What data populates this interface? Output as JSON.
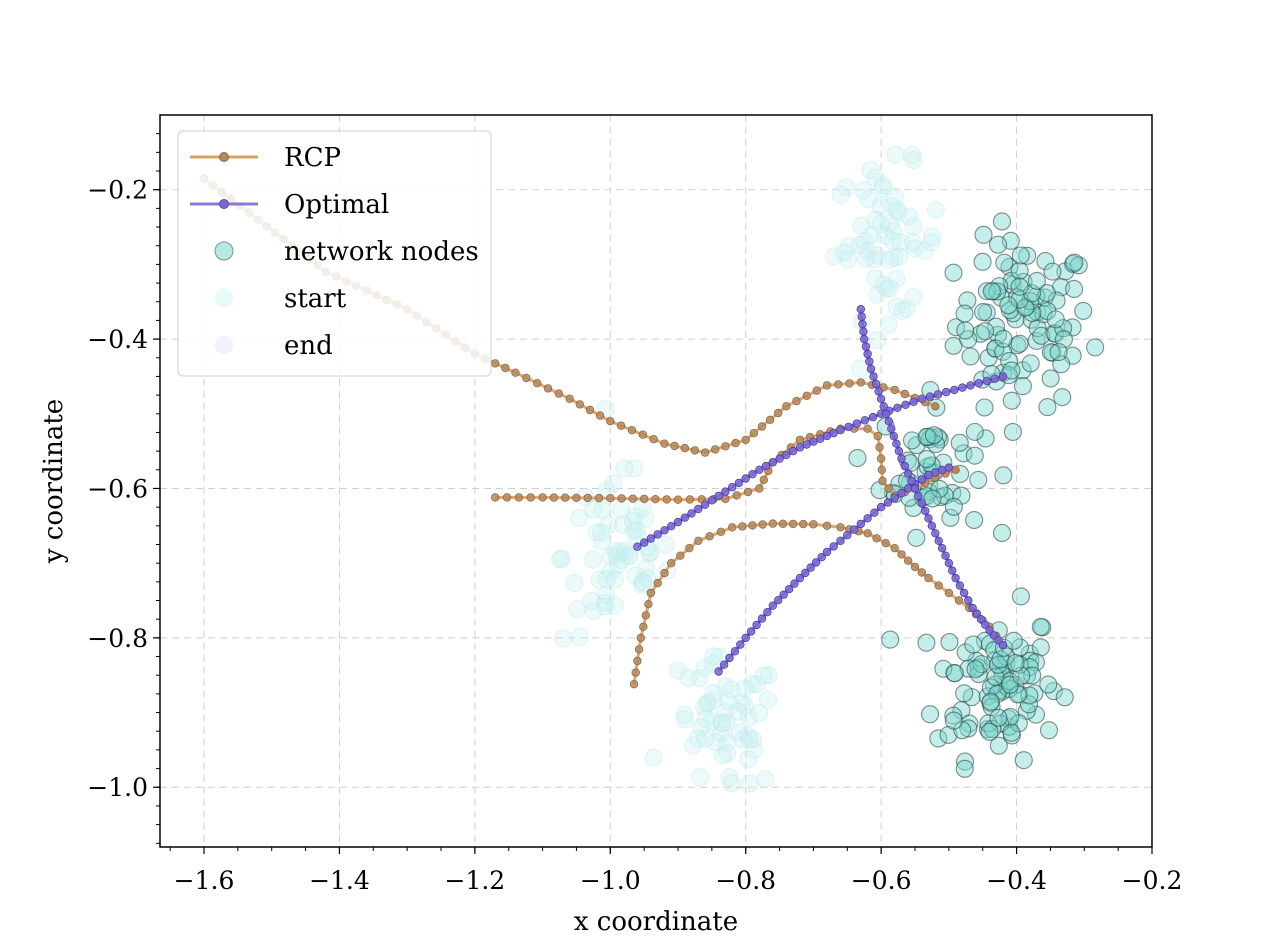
{
  "chart_data": {
    "type": "scatter",
    "title": "",
    "xlabel": "x coordinate",
    "ylabel": "y coordinate",
    "xlim": [
      -1.665,
      -0.2
    ],
    "ylim": [
      -1.08,
      -0.1
    ],
    "x_ticks": [
      -1.6,
      -1.4,
      -1.2,
      -1.0,
      -0.8,
      -0.6,
      -0.4,
      -0.2
    ],
    "x_tick_labels": [
      "−1.6",
      "−1.4",
      "−1.2",
      "−1.0",
      "−0.8",
      "−0.6",
      "−0.4",
      "−0.2"
    ],
    "y_ticks": [
      -0.2,
      -0.4,
      -0.6,
      -0.8,
      -1.0
    ],
    "y_tick_labels": [
      "−0.2",
      "−0.4",
      "−0.6",
      "−0.8",
      "−1.0"
    ],
    "grid": true,
    "legend": {
      "position": "upper-left",
      "entries": [
        {
          "label": "RCP",
          "kind": "line",
          "color": "#d9a066"
        },
        {
          "label": "Optimal",
          "kind": "line",
          "color": "#6a5acd"
        },
        {
          "label": "network nodes",
          "kind": "marker",
          "color": "#7fd6cf"
        },
        {
          "label": "start",
          "kind": "marker",
          "color": "#e8fbfb"
        },
        {
          "label": "end",
          "kind": "marker",
          "color": "#f3f0fb"
        }
      ]
    },
    "colors": {
      "rcp": "#d9a066",
      "rcp_marker": "#b5885a",
      "optimal": "#6a5acd",
      "optimal_marker": "#7b68d6",
      "node_fill": "#7fd6cf",
      "node_edge": "#000000",
      "faded_node": "#c8f0f2"
    },
    "series": [
      {
        "name": "RCP",
        "points": [
          [
            -1.6,
            -0.185
          ],
          [
            -1.52,
            -0.24
          ],
          [
            -1.42,
            -0.31
          ],
          [
            -1.3,
            -0.36
          ],
          [
            -1.2,
            -0.42
          ],
          [
            -1.14,
            -0.445
          ],
          [
            -1.06,
            -0.48
          ],
          [
            -1.0,
            -0.51
          ],
          [
            -0.92,
            -0.54
          ],
          [
            -0.86,
            -0.552
          ],
          [
            -0.8,
            -0.535
          ],
          [
            -0.74,
            -0.49
          ],
          [
            -0.68,
            -0.462
          ],
          [
            -0.63,
            -0.458
          ],
          [
            -0.58,
            -0.468
          ],
          [
            -0.52,
            -0.49
          ]
        ]
      },
      {
        "name": "RCP",
        "points": [
          [
            -1.17,
            -0.612
          ],
          [
            -1.1,
            -0.612
          ],
          [
            -1.0,
            -0.613
          ],
          [
            -0.9,
            -0.615
          ],
          [
            -0.83,
            -0.614
          ],
          [
            -0.78,
            -0.6
          ],
          [
            -0.76,
            -0.565
          ],
          [
            -0.72,
            -0.535
          ],
          [
            -0.66,
            -0.52
          ],
          [
            -0.62,
            -0.52
          ],
          [
            -0.605,
            -0.53
          ],
          [
            -0.6,
            -0.56
          ],
          [
            -0.598,
            -0.59
          ],
          [
            -0.58,
            -0.61
          ],
          [
            -0.55,
            -0.6
          ],
          [
            -0.52,
            -0.585
          ],
          [
            -0.49,
            -0.575
          ]
        ]
      },
      {
        "name": "RCP",
        "points": [
          [
            -0.965,
            -0.862
          ],
          [
            -0.955,
            -0.8
          ],
          [
            -0.94,
            -0.74
          ],
          [
            -0.91,
            -0.7
          ],
          [
            -0.87,
            -0.67
          ],
          [
            -0.82,
            -0.652
          ],
          [
            -0.76,
            -0.647
          ],
          [
            -0.7,
            -0.648
          ],
          [
            -0.66,
            -0.652
          ],
          [
            -0.62,
            -0.66
          ],
          [
            -0.58,
            -0.68
          ],
          [
            -0.55,
            -0.705
          ],
          [
            -0.53,
            -0.72
          ],
          [
            -0.5,
            -0.74
          ],
          [
            -0.47,
            -0.76
          ],
          [
            -0.44,
            -0.785
          ],
          [
            -0.42,
            -0.81
          ]
        ]
      },
      {
        "name": "Optimal",
        "points": [
          [
            -0.96,
            -0.678
          ],
          [
            -0.9,
            -0.645
          ],
          [
            -0.84,
            -0.61
          ],
          [
            -0.78,
            -0.575
          ],
          [
            -0.72,
            -0.545
          ],
          [
            -0.66,
            -0.522
          ],
          [
            -0.6,
            -0.5
          ],
          [
            -0.54,
            -0.48
          ],
          [
            -0.48,
            -0.465
          ],
          [
            -0.42,
            -0.45
          ]
        ]
      },
      {
        "name": "Optimal",
        "points": [
          [
            -0.84,
            -0.845
          ],
          [
            -0.8,
            -0.8
          ],
          [
            -0.76,
            -0.757
          ],
          [
            -0.72,
            -0.72
          ],
          [
            -0.68,
            -0.685
          ],
          [
            -0.64,
            -0.655
          ],
          [
            -0.6,
            -0.625
          ],
          [
            -0.56,
            -0.6
          ],
          [
            -0.53,
            -0.582
          ],
          [
            -0.5,
            -0.572
          ]
        ]
      },
      {
        "name": "Optimal",
        "points": [
          [
            -0.63,
            -0.36
          ],
          [
            -0.625,
            -0.4
          ],
          [
            -0.615,
            -0.44
          ],
          [
            -0.6,
            -0.48
          ],
          [
            -0.585,
            -0.52
          ],
          [
            -0.57,
            -0.56
          ],
          [
            -0.55,
            -0.6
          ],
          [
            -0.53,
            -0.64
          ],
          [
            -0.51,
            -0.68
          ],
          [
            -0.49,
            -0.72
          ],
          [
            -0.465,
            -0.76
          ],
          [
            -0.44,
            -0.79
          ],
          [
            -0.42,
            -0.81
          ]
        ]
      }
    ],
    "node_clusters": [
      {
        "label": "network nodes",
        "center": [
          -0.39,
          -0.38
        ],
        "spread": [
          0.05,
          0.055
        ],
        "count": 100,
        "faded": false
      },
      {
        "label": "network nodes",
        "center": [
          -0.43,
          -0.86
        ],
        "spread": [
          0.045,
          0.05
        ],
        "count": 95,
        "faded": false
      },
      {
        "label": "network nodes",
        "center": [
          -0.525,
          -0.57
        ],
        "spread": [
          0.038,
          0.045
        ],
        "count": 55,
        "faded": false
      },
      {
        "label": "start",
        "center": [
          -0.59,
          -0.27
        ],
        "spread": [
          0.04,
          0.05
        ],
        "count": 60,
        "faded": true
      },
      {
        "label": "start",
        "center": [
          -0.99,
          -0.69
        ],
        "spread": [
          0.04,
          0.06
        ],
        "count": 60,
        "faded": true
      },
      {
        "label": "end",
        "center": [
          -0.83,
          -0.92
        ],
        "spread": [
          0.04,
          0.045
        ],
        "count": 55,
        "faded": true
      }
    ]
  }
}
